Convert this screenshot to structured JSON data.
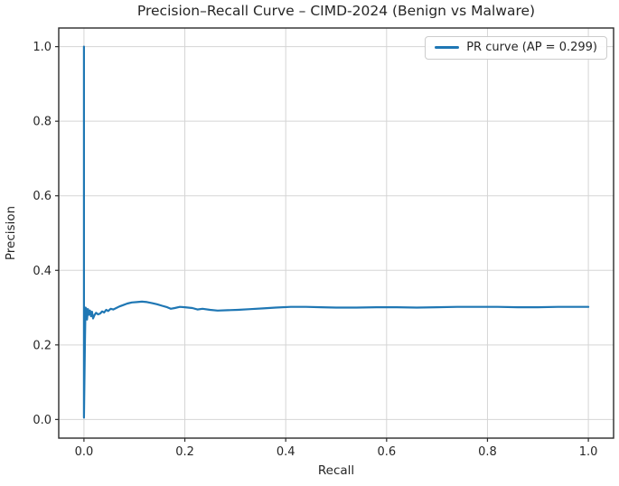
{
  "chart_data": {
    "type": "line",
    "title": "Precision–Recall Curve – CIMD-2024 (Benign vs Malware)",
    "xlabel": "Recall",
    "ylabel": "Precision",
    "xlim": [
      -0.05,
      1.05
    ],
    "ylim": [
      -0.05,
      1.05
    ],
    "x_tick_values": [
      0.0,
      0.2,
      0.4,
      0.6,
      0.8,
      1.0
    ],
    "x_tick_labels": [
      "0.0",
      "0.2",
      "0.4",
      "0.6",
      "0.8",
      "1.0"
    ],
    "y_tick_values": [
      0.0,
      0.2,
      0.4,
      0.6,
      0.8,
      1.0
    ],
    "y_tick_labels": [
      "0.0",
      "0.2",
      "0.4",
      "0.6",
      "0.8",
      "1.0"
    ],
    "grid": true,
    "legend": {
      "label": "PR curve (AP = 0.299)",
      "position": "upper right"
    },
    "ap": 0.299,
    "colors": {
      "line": "#1f77b4",
      "grid": "#d5d5d5",
      "spine": "#2b2b2b",
      "text": "#262626"
    },
    "series": [
      {
        "name": "PR curve (AP = 0.299)",
        "points": [
          [
            0.0,
            1.0
          ],
          [
            0.0,
            0.005
          ],
          [
            0.002,
            0.21
          ],
          [
            0.003,
            0.3
          ],
          [
            0.005,
            0.297
          ],
          [
            0.006,
            0.268
          ],
          [
            0.008,
            0.296
          ],
          [
            0.01,
            0.281
          ],
          [
            0.012,
            0.292
          ],
          [
            0.014,
            0.277
          ],
          [
            0.016,
            0.289
          ],
          [
            0.018,
            0.271
          ],
          [
            0.021,
            0.28
          ],
          [
            0.024,
            0.286
          ],
          [
            0.028,
            0.282
          ],
          [
            0.032,
            0.284
          ],
          [
            0.036,
            0.29
          ],
          [
            0.04,
            0.287
          ],
          [
            0.044,
            0.294
          ],
          [
            0.048,
            0.291
          ],
          [
            0.053,
            0.297
          ],
          [
            0.058,
            0.295
          ],
          [
            0.064,
            0.299
          ],
          [
            0.07,
            0.303
          ],
          [
            0.078,
            0.307
          ],
          [
            0.086,
            0.311
          ],
          [
            0.095,
            0.314
          ],
          [
            0.105,
            0.315
          ],
          [
            0.115,
            0.316
          ],
          [
            0.125,
            0.315
          ],
          [
            0.135,
            0.312
          ],
          [
            0.145,
            0.309
          ],
          [
            0.155,
            0.305
          ],
          [
            0.165,
            0.301
          ],
          [
            0.172,
            0.297
          ],
          [
            0.18,
            0.299
          ],
          [
            0.19,
            0.302
          ],
          [
            0.2,
            0.301
          ],
          [
            0.215,
            0.299
          ],
          [
            0.225,
            0.295
          ],
          [
            0.235,
            0.297
          ],
          [
            0.25,
            0.294
          ],
          [
            0.265,
            0.292
          ],
          [
            0.285,
            0.293
          ],
          [
            0.305,
            0.294
          ],
          [
            0.33,
            0.296
          ],
          [
            0.355,
            0.298
          ],
          [
            0.38,
            0.3
          ],
          [
            0.41,
            0.302
          ],
          [
            0.44,
            0.302
          ],
          [
            0.47,
            0.301
          ],
          [
            0.5,
            0.3
          ],
          [
            0.54,
            0.3
          ],
          [
            0.58,
            0.301
          ],
          [
            0.62,
            0.301
          ],
          [
            0.66,
            0.3
          ],
          [
            0.7,
            0.301
          ],
          [
            0.74,
            0.302
          ],
          [
            0.78,
            0.302
          ],
          [
            0.82,
            0.302
          ],
          [
            0.86,
            0.301
          ],
          [
            0.9,
            0.301
          ],
          [
            0.94,
            0.302
          ],
          [
            1.0,
            0.302
          ]
        ]
      }
    ]
  }
}
